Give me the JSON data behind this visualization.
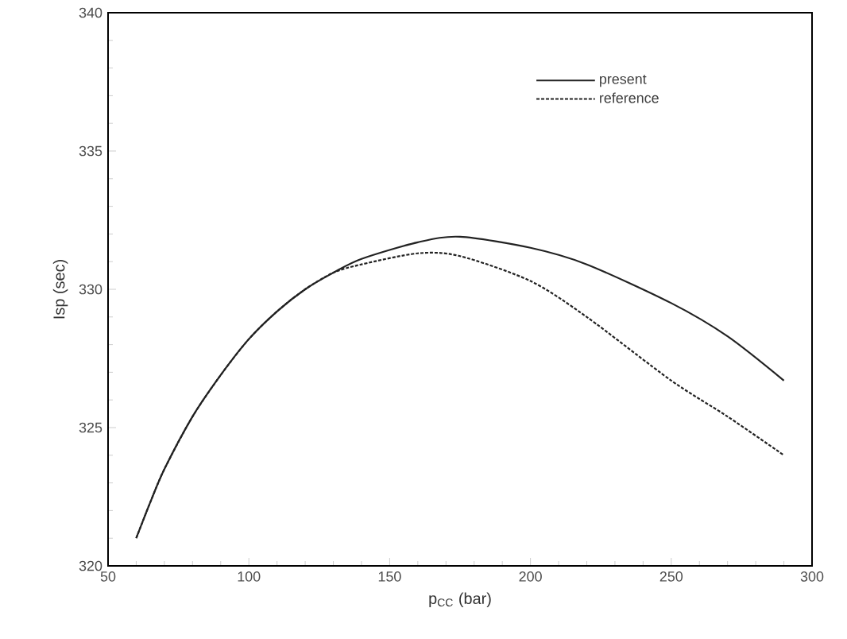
{
  "chart_data": {
    "type": "line",
    "xlabel": "p$_{CC}$ (bar)",
    "ylabel": "Isp (sec)",
    "xlim": [
      50,
      300
    ],
    "ylim": [
      320,
      340
    ],
    "xticks": [
      50,
      100,
      150,
      200,
      250,
      300
    ],
    "yticks": [
      320,
      325,
      330,
      335,
      340
    ],
    "x": [
      60,
      65,
      70,
      80,
      90,
      100,
      110,
      120,
      130,
      140,
      160,
      175,
      200,
      220,
      250,
      270,
      290
    ],
    "series": [
      {
        "name": "present",
        "color": "#222222",
        "line_style": "solid",
        "values": [
          321.0,
          322.3,
          323.5,
          325.4,
          326.9,
          328.2,
          329.2,
          330.0,
          330.6,
          331.1,
          331.7,
          331.9,
          331.5,
          330.9,
          329.5,
          328.3,
          326.7
        ]
      },
      {
        "name": "reference",
        "color": "#222222",
        "line_style": "dashed",
        "values": [
          321.0,
          322.3,
          323.5,
          325.4,
          326.9,
          328.2,
          329.2,
          330.0,
          330.6,
          330.9,
          331.3,
          331.2,
          330.3,
          329.0,
          326.7,
          325.4,
          324.0
        ]
      }
    ],
    "legend": "top right",
    "grid": false,
    "marker": "none"
  }
}
